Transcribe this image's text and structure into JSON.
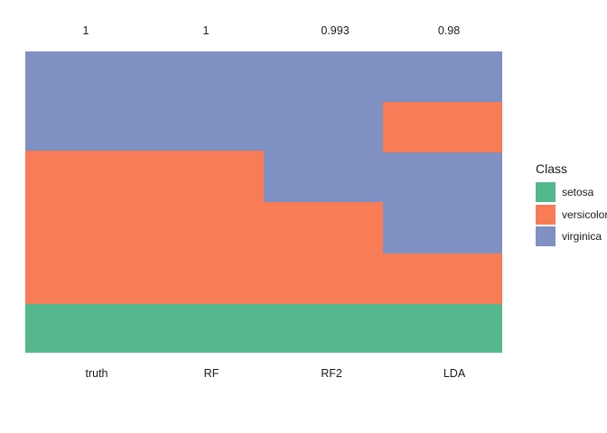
{
  "chart_data": {
    "type": "heatmap",
    "title": "",
    "legend_position": "right",
    "grid": false,
    "class_colors": {
      "setosa": "#54B78D",
      "versicolor": "#F87C55",
      "virginica": "#7F90C2"
    },
    "columns": [
      {
        "label": "truth",
        "score": "1",
        "segments": [
          {
            "class": "virginica",
            "frac": 0.3293
          },
          {
            "class": "versicolor",
            "frac": 0.509
          },
          {
            "class": "setosa",
            "frac": 0.1617
          }
        ]
      },
      {
        "label": "RF",
        "score": "1",
        "segments": [
          {
            "class": "virginica",
            "frac": 0.3293
          },
          {
            "class": "versicolor",
            "frac": 0.509
          },
          {
            "class": "setosa",
            "frac": 0.1617
          }
        ]
      },
      {
        "label": "RF2",
        "score": "0.993",
        "segments": [
          {
            "class": "virginica",
            "frac": 0.5
          },
          {
            "class": "versicolor",
            "frac": 0.3383
          },
          {
            "class": "setosa",
            "frac": 0.1617
          }
        ]
      },
      {
        "label": "LDA",
        "score": "0.98",
        "segments": [
          {
            "class": "virginica",
            "frac": 0.1677
          },
          {
            "class": "versicolor",
            "frac": 0.1677
          },
          {
            "class": "virginica",
            "frac": 0.3353
          },
          {
            "class": "versicolor",
            "frac": 0.1676
          },
          {
            "class": "setosa",
            "frac": 0.1617
          }
        ]
      }
    ],
    "legend": {
      "title": "Class",
      "items": [
        {
          "label": "setosa",
          "color": "#54B78D"
        },
        {
          "label": "versicolor",
          "color": "#F87C55"
        },
        {
          "label": "virginica",
          "color": "#7F90C2"
        }
      ]
    }
  }
}
